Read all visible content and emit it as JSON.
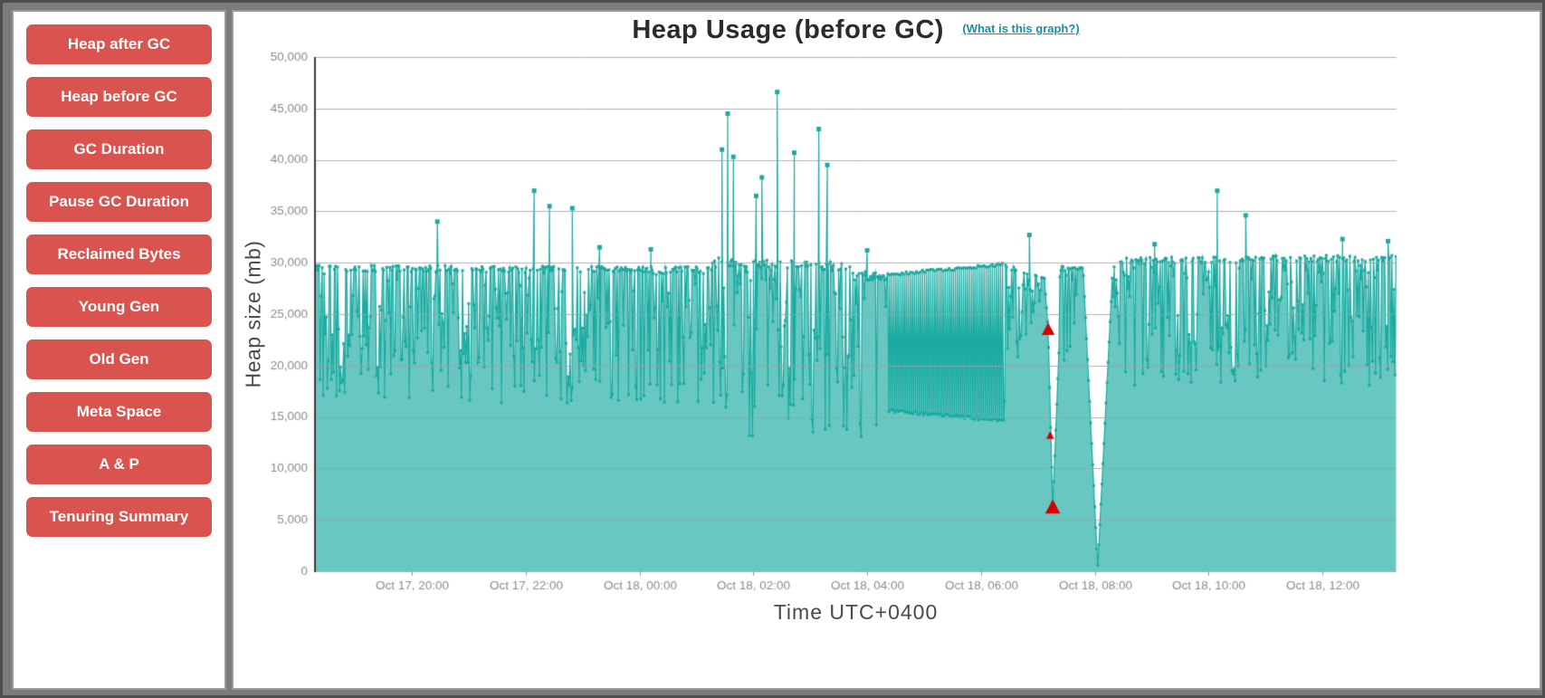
{
  "page": {
    "colors": {
      "background": "#7b7b7b",
      "panel": "#ffffff",
      "panel_border": "#9a9a9a",
      "sidebar_button": "#d9534f",
      "sidebar_button_text": "#ffffff"
    }
  },
  "sidebar": {
    "buttons": [
      {
        "label": "Heap after GC"
      },
      {
        "label": "Heap before GC"
      },
      {
        "label": "GC Duration"
      },
      {
        "label": "Pause GC Duration"
      },
      {
        "label": "Reclaimed Bytes"
      },
      {
        "label": "Young Gen"
      },
      {
        "label": "Old Gen"
      },
      {
        "label": "Meta Space"
      },
      {
        "label": "A & P"
      },
      {
        "label": "Tenuring Summary"
      }
    ]
  },
  "chart": {
    "title": "Heap Usage (before GC)",
    "help_link": "(What is this graph?)",
    "ylabel": "Heap size (mb)",
    "xlabel": "Time UTC+0400",
    "colors": {
      "title": "#2b2b2b",
      "help_link": "#1790a4",
      "axis_label": "#4a4a4a",
      "tick_text": "#8b8b8b",
      "grid": "#b0b0b0",
      "axis_line": "#3c3c3c",
      "series_line": "#1aaaa0",
      "series_fill": "rgba(26,170,160,0.66)",
      "alert_marker": "#d40000"
    }
  },
  "chart_data": {
    "type": "area",
    "title": "Heap Usage (before GC)",
    "xlabel": "Time UTC+0400",
    "ylabel": "Heap size (mb)",
    "ylim": [
      0,
      50000
    ],
    "ytick_step": 5000,
    "grid": "horizontal",
    "legend": "none",
    "x_range_hours": [
      18.3,
      37.3
    ],
    "xticks": [
      {
        "hour": 20,
        "label": "Oct 17, 20:00"
      },
      {
        "hour": 22,
        "label": "Oct 17, 22:00"
      },
      {
        "hour": 24,
        "label": "Oct 18, 00:00"
      },
      {
        "hour": 26,
        "label": "Oct 18, 02:00"
      },
      {
        "hour": 28,
        "label": "Oct 18, 04:00"
      },
      {
        "hour": 30,
        "label": "Oct 18, 06:00"
      },
      {
        "hour": 32,
        "label": "Oct 18, 08:00"
      },
      {
        "hour": 34,
        "label": "Oct 18, 10:00"
      },
      {
        "hour": 36,
        "label": "Oct 18, 12:00"
      }
    ],
    "band_keypoints": [
      {
        "h": 18.3,
        "low": 16500,
        "high": 29800,
        "mode": "noise"
      },
      {
        "h": 25.2,
        "low": 16200,
        "high": 29600,
        "mode": "noise"
      },
      {
        "h": 25.35,
        "low": 13000,
        "high": 30500,
        "mode": "noise"
      },
      {
        "h": 27.6,
        "low": 13500,
        "high": 30000,
        "mode": "noise"
      },
      {
        "h": 28.05,
        "low": 12800,
        "high": 29000,
        "mode": "noise"
      },
      {
        "h": 28.35,
        "low": 15500,
        "high": 29000,
        "mode": "solid"
      },
      {
        "h": 30.4,
        "low": 14500,
        "high": 30000,
        "mode": "noise"
      },
      {
        "h": 31.12,
        "low": 27500,
        "high": 28500,
        "mode": "line"
      },
      {
        "h": 31.18,
        "low": 23200,
        "high": 23800,
        "mode": "line"
      },
      {
        "h": 31.26,
        "low": 5800,
        "high": 6600,
        "mode": "line"
      },
      {
        "h": 31.38,
        "low": 16000,
        "high": 29800,
        "mode": "noise"
      },
      {
        "h": 31.8,
        "low": 28000,
        "high": 29500,
        "mode": "line"
      },
      {
        "h": 32.05,
        "low": 150,
        "high": 600,
        "mode": "line"
      },
      {
        "h": 32.3,
        "low": 26000,
        "high": 29500,
        "mode": "noise"
      },
      {
        "h": 32.55,
        "low": 17500,
        "high": 30500,
        "mode": "noise"
      },
      {
        "h": 37.3,
        "low": 18000,
        "high": 30800,
        "mode": "noise"
      }
    ],
    "spikes": [
      {
        "h": 20.45,
        "v": 34000
      },
      {
        "h": 22.15,
        "v": 37000
      },
      {
        "h": 22.42,
        "v": 35500
      },
      {
        "h": 22.82,
        "v": 35300
      },
      {
        "h": 23.3,
        "v": 31500
      },
      {
        "h": 24.2,
        "v": 31300
      },
      {
        "h": 25.45,
        "v": 41000
      },
      {
        "h": 25.55,
        "v": 44500
      },
      {
        "h": 25.65,
        "v": 40300
      },
      {
        "h": 26.05,
        "v": 36500
      },
      {
        "h": 26.15,
        "v": 38300
      },
      {
        "h": 26.42,
        "v": 46600
      },
      {
        "h": 26.72,
        "v": 40700
      },
      {
        "h": 27.15,
        "v": 43000
      },
      {
        "h": 27.3,
        "v": 39500
      },
      {
        "h": 28.0,
        "v": 31200
      },
      {
        "h": 30.85,
        "v": 32700
      },
      {
        "h": 33.05,
        "v": 31800
      },
      {
        "h": 34.15,
        "v": 37000
      },
      {
        "h": 34.65,
        "v": 34600
      },
      {
        "h": 36.35,
        "v": 32300
      },
      {
        "h": 37.15,
        "v": 32100
      }
    ],
    "alert_markers": [
      {
        "h": 31.18,
        "v": 23500,
        "size": 13
      },
      {
        "h": 31.215,
        "v": 13200,
        "size": 8
      },
      {
        "h": 31.26,
        "v": 6200,
        "size": 15
      }
    ],
    "sample_step_hours": 0.018,
    "seed": 1234
  }
}
